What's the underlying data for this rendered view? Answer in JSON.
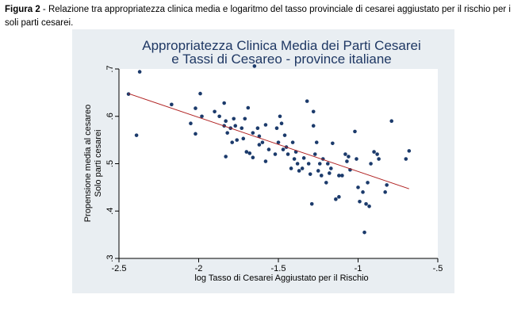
{
  "caption": {
    "label": "Figura 2",
    "text": " - Relazione tra appropriatezza clinica media e logaritmo del tasso provinciale di cesarei aggiustato per il rischio per i soli parti cesarei."
  },
  "chart_data": {
    "type": "scatter",
    "title": [
      "Appropriatezza Clinica Media dei Parti Cesarei",
      "e Tassi di Cesareo - province italiane"
    ],
    "xlabel": "log Tasso di Cesarei Aggiustato per il Rischio",
    "ylabel": [
      "Propensione media al cesareo",
      "Solo parti cesarei"
    ],
    "xlim": [
      -2.5,
      -0.5
    ],
    "ylim": [
      0.3,
      0.7
    ],
    "xticks": [
      -2.5,
      -2,
      -1.5,
      -1,
      -0.5
    ],
    "xtick_labels": [
      "-2.5",
      "-2",
      "-1.5",
      "-1",
      "-.5"
    ],
    "yticks": [
      0.3,
      0.4,
      0.5,
      0.6,
      0.7
    ],
    "ytick_labels": [
      ".3",
      ".4",
      ".5",
      ".6",
      ".7"
    ],
    "grid": false,
    "colors": {
      "points": "#1b3a6b",
      "fit_line": "#b02020",
      "panel_bg": "#e9eef2",
      "plot_bg": "#ffffff",
      "title": "#1f3864"
    },
    "points": [
      [
        -2.44,
        0.647
      ],
      [
        -2.39,
        0.56
      ],
      [
        -2.37,
        0.694
      ],
      [
        -2.17,
        0.625
      ],
      [
        -2.05,
        0.585
      ],
      [
        -2.02,
        0.617
      ],
      [
        -1.99,
        0.648
      ],
      [
        -2.02,
        0.563
      ],
      [
        -1.98,
        0.6
      ],
      [
        -1.9,
        0.61
      ],
      [
        -1.87,
        0.6
      ],
      [
        -1.84,
        0.628
      ],
      [
        -1.84,
        0.58
      ],
      [
        -1.83,
        0.59
      ],
      [
        -1.82,
        0.565
      ],
      [
        -1.8,
        0.575
      ],
      [
        -1.78,
        0.595
      ],
      [
        -1.77,
        0.58
      ],
      [
        -1.76,
        0.55
      ],
      [
        -1.73,
        0.575
      ],
      [
        -1.72,
        0.553
      ],
      [
        -1.71,
        0.595
      ],
      [
        -1.69,
        0.618
      ],
      [
        -1.66,
        0.565
      ],
      [
        -1.65,
        0.706
      ],
      [
        -1.63,
        0.575
      ],
      [
        -1.62,
        0.558
      ],
      [
        -1.6,
        0.545
      ],
      [
        -1.58,
        0.582
      ],
      [
        -1.56,
        0.53
      ],
      [
        -1.83,
        0.515
      ],
      [
        -1.79,
        0.545
      ],
      [
        -1.7,
        0.525
      ],
      [
        -1.68,
        0.522
      ],
      [
        -1.66,
        0.513
      ],
      [
        -1.62,
        0.54
      ],
      [
        -1.58,
        0.505
      ],
      [
        -1.52,
        0.52
      ],
      [
        -1.51,
        0.575
      ],
      [
        -1.5,
        0.545
      ],
      [
        -1.49,
        0.6
      ],
      [
        -1.48,
        0.585
      ],
      [
        -1.47,
        0.53
      ],
      [
        -1.46,
        0.56
      ],
      [
        -1.45,
        0.535
      ],
      [
        -1.44,
        0.52
      ],
      [
        -1.42,
        0.49
      ],
      [
        -1.41,
        0.545
      ],
      [
        -1.4,
        0.51
      ],
      [
        -1.39,
        0.525
      ],
      [
        -1.38,
        0.5
      ],
      [
        -1.37,
        0.485
      ],
      [
        -1.35,
        0.49
      ],
      [
        -1.34,
        0.512
      ],
      [
        -1.32,
        0.632
      ],
      [
        -1.31,
        0.5
      ],
      [
        -1.3,
        0.478
      ],
      [
        -1.29,
        0.415
      ],
      [
        -1.28,
        0.61
      ],
      [
        -1.28,
        0.58
      ],
      [
        -1.27,
        0.52
      ],
      [
        -1.26,
        0.545
      ],
      [
        -1.25,
        0.485
      ],
      [
        -1.24,
        0.5
      ],
      [
        -1.23,
        0.475
      ],
      [
        -1.22,
        0.51
      ],
      [
        -1.2,
        0.46
      ],
      [
        -1.19,
        0.5
      ],
      [
        -1.18,
        0.48
      ],
      [
        -1.17,
        0.49
      ],
      [
        -1.16,
        0.543
      ],
      [
        -1.14,
        0.425
      ],
      [
        -1.12,
        0.43
      ],
      [
        -1.12,
        0.475
      ],
      [
        -1.1,
        0.475
      ],
      [
        -1.08,
        0.52
      ],
      [
        -1.07,
        0.505
      ],
      [
        -1.06,
        0.515
      ],
      [
        -1.05,
        0.487
      ],
      [
        -1.02,
        0.568
      ],
      [
        -1.01,
        0.51
      ],
      [
        -1.0,
        0.45
      ],
      [
        -0.99,
        0.42
      ],
      [
        -0.97,
        0.44
      ],
      [
        -0.96,
        0.355
      ],
      [
        -0.95,
        0.415
      ],
      [
        -0.94,
        0.46
      ],
      [
        -0.93,
        0.41
      ],
      [
        -0.92,
        0.5
      ],
      [
        -0.9,
        0.525
      ],
      [
        -0.88,
        0.52
      ],
      [
        -0.87,
        0.51
      ],
      [
        -0.83,
        0.44
      ],
      [
        -0.82,
        0.455
      ],
      [
        -0.79,
        0.59
      ],
      [
        -0.7,
        0.51
      ],
      [
        -0.68,
        0.527
      ]
    ],
    "fit_line": [
      [
        -2.44,
        0.648
      ],
      [
        -0.68,
        0.447
      ]
    ]
  }
}
